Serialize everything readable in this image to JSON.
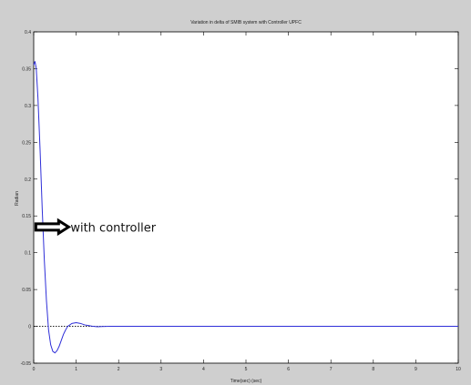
{
  "chart_data": {
    "type": "line",
    "title": "Variation in delta of SMIB system with Controller UPFC",
    "xlabel": "Time(sec) (sec)",
    "ylabel": "Radian",
    "xlim": [
      0,
      10
    ],
    "ylim": [
      -0.05,
      0.4
    ],
    "xticks": [
      "0",
      "1",
      "2",
      "3",
      "4",
      "5",
      "6",
      "7",
      "8",
      "9",
      "10"
    ],
    "yticks": [
      "-0.05",
      "0",
      "0.05",
      "0.1",
      "0.15",
      "0.2",
      "0.25",
      "0.3",
      "0.35",
      "0.4"
    ],
    "grid": false,
    "series": [
      {
        "color": "#2f2fd8",
        "x": [
          0,
          0.03,
          0.06,
          0.1,
          0.15,
          0.2,
          0.25,
          0.3,
          0.35,
          0.4,
          0.45,
          0.5,
          0.55,
          0.6,
          0.65,
          0.7,
          0.75,
          0.8,
          0.9,
          1.0,
          1.1,
          1.2,
          1.3,
          1.4,
          1.5,
          1.6,
          1.8,
          2.0,
          3.0,
          4.0,
          5.0,
          6.0,
          7.0,
          8.0,
          9.0,
          10.0
        ],
        "y": [
          0.355,
          0.36,
          0.35,
          0.31,
          0.24,
          0.16,
          0.09,
          0.035,
          -0.005,
          -0.025,
          -0.034,
          -0.036,
          -0.033,
          -0.027,
          -0.019,
          -0.011,
          -0.005,
          0.0,
          0.004,
          0.005,
          0.004,
          0.002,
          0.001,
          0.0,
          -0.0005,
          -0.0003,
          0.0,
          0.0,
          0.0,
          0.0,
          0.0,
          0.0,
          0.0,
          0.0,
          0.0,
          0.0
        ]
      }
    ],
    "reference_line": {
      "y": 0,
      "style": "dotted",
      "color": "#000000",
      "x_end": 1.7
    },
    "annotation": {
      "text": "with controller",
      "arrow": "right",
      "x": 0.05,
      "y": 0.135
    }
  }
}
